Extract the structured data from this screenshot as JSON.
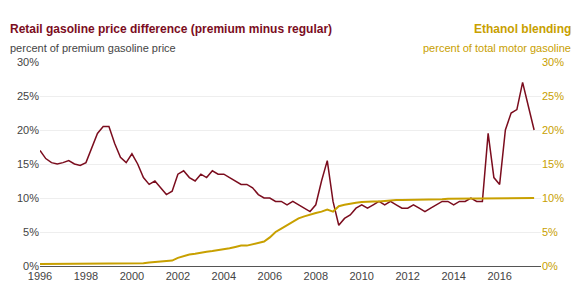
{
  "chart_data": {
    "type": "line",
    "title": "Retail gasoline price difference (premium minus regular)",
    "subtitle": "percent of premium gasoline price",
    "annotations": [
      "Ethanol blending",
      "percent of total motor gasoline"
    ],
    "x": [
      1996.0,
      1996.25,
      1996.5,
      1996.75,
      1997.0,
      1997.25,
      1997.5,
      1997.75,
      1998.0,
      1998.25,
      1998.5,
      1998.75,
      1999.0,
      1999.25,
      1999.5,
      1999.75,
      2000.0,
      2000.25,
      2000.5,
      2000.75,
      2001.0,
      2001.25,
      2001.5,
      2001.75,
      2002.0,
      2002.25,
      2002.5,
      2002.75,
      2003.0,
      2003.25,
      2003.5,
      2003.75,
      2004.0,
      2004.25,
      2004.5,
      2004.75,
      2005.0,
      2005.25,
      2005.5,
      2005.75,
      2006.0,
      2006.25,
      2006.5,
      2006.75,
      2007.0,
      2007.25,
      2007.5,
      2007.75,
      2008.0,
      2008.25,
      2008.5,
      2008.75,
      2009.0,
      2009.25,
      2009.5,
      2009.75,
      2010.0,
      2010.25,
      2010.5,
      2010.75,
      2011.0,
      2011.25,
      2011.5,
      2011.75,
      2012.0,
      2012.25,
      2012.5,
      2012.75,
      2013.0,
      2013.25,
      2013.5,
      2013.75,
      2014.0,
      2014.25,
      2014.5,
      2014.75,
      2015.0,
      2015.25,
      2015.5,
      2015.75,
      2016.0,
      2016.25,
      2016.5,
      2016.75,
      2017.0,
      2017.25,
      2017.5
    ],
    "series": [
      {
        "color": "#7b0d1e",
        "values": [
          17.0,
          15.8,
          15.2,
          15.0,
          15.2,
          15.5,
          15.0,
          14.8,
          15.2,
          17.5,
          19.5,
          20.5,
          20.5,
          18.0,
          16.0,
          15.2,
          16.5,
          15.0,
          13.0,
          12.0,
          12.5,
          11.5,
          10.5,
          11.0,
          13.5,
          14.0,
          13.0,
          12.5,
          13.5,
          13.0,
          14.0,
          13.5,
          13.5,
          13.0,
          12.5,
          12.0,
          12.0,
          11.5,
          10.5,
          10.0,
          10.0,
          9.5,
          9.5,
          9.0,
          9.5,
          9.0,
          8.5,
          8.0,
          9.0,
          12.5,
          15.5,
          9.5,
          6.0,
          7.0,
          7.5,
          8.5,
          9.0,
          8.5,
          9.0,
          9.5,
          9.0,
          9.5,
          9.0,
          8.5,
          8.5,
          9.0,
          8.5,
          8.0,
          8.5,
          9.0,
          9.5,
          9.5,
          9.0,
          9.5,
          9.5,
          10.0,
          9.5,
          9.5,
          19.5,
          13.0,
          12.0,
          20.0,
          22.5,
          23.0,
          27.0,
          23.5,
          20.0
        ]
      },
      {
        "color": "#c8a000",
        "axis": "y2",
        "values": [
          0.3,
          0.3,
          0.3,
          0.3,
          0.3,
          0.3,
          0.3,
          0.3,
          0.3,
          0.3,
          0.3,
          0.3,
          0.3,
          0.3,
          0.3,
          0.3,
          0.4,
          0.4,
          0.4,
          0.5,
          0.6,
          0.7,
          0.8,
          0.8,
          1.2,
          1.5,
          1.7,
          1.8,
          2.0,
          2.1,
          2.2,
          2.3,
          2.5,
          2.6,
          2.8,
          3.0,
          3.0,
          3.2,
          3.4,
          3.6,
          4.2,
          5.0,
          5.5,
          6.0,
          6.5,
          7.0,
          7.3,
          7.6,
          7.8,
          8.0,
          8.3,
          8.0,
          8.8,
          9.0,
          9.2,
          9.3,
          9.4,
          9.5,
          9.5,
          9.5,
          9.6,
          9.6,
          9.7,
          9.7,
          9.7,
          9.7,
          9.8,
          9.8,
          9.8,
          9.8,
          9.8,
          9.9,
          9.9,
          9.9,
          9.9,
          9.9,
          9.9,
          9.9,
          9.9,
          9.9,
          10.0,
          10.0,
          10.0,
          10.0,
          10.0,
          10.0,
          10.0
        ]
      }
    ],
    "xlim": [
      1996,
      2017.8
    ],
    "xticks": [
      1996,
      1998,
      2000,
      2002,
      2004,
      2006,
      2008,
      2010,
      2012,
      2014,
      2016
    ],
    "ylim": [
      0,
      30
    ],
    "yticks": [
      {
        "value": 0,
        "label": "0%"
      },
      {
        "value": 5,
        "label": "5%"
      },
      {
        "value": 10,
        "label": "10%"
      },
      {
        "value": 15,
        "label": "15%"
      },
      {
        "value": 20,
        "label": "20%"
      },
      {
        "value": 25,
        "label": "25%"
      },
      {
        "value": 30,
        "label": "30%"
      }
    ],
    "y2lim": [
      0,
      30
    ],
    "y2ticks": [
      {
        "value": 0,
        "label": "0%"
      },
      {
        "value": 5,
        "label": "5%"
      },
      {
        "value": 10,
        "label": "10%"
      },
      {
        "value": 15,
        "label": "15%"
      },
      {
        "value": 20,
        "label": "20%"
      },
      {
        "value": 25,
        "label": "25%"
      },
      {
        "value": 30,
        "label": "30%"
      }
    ],
    "grid": true
  }
}
